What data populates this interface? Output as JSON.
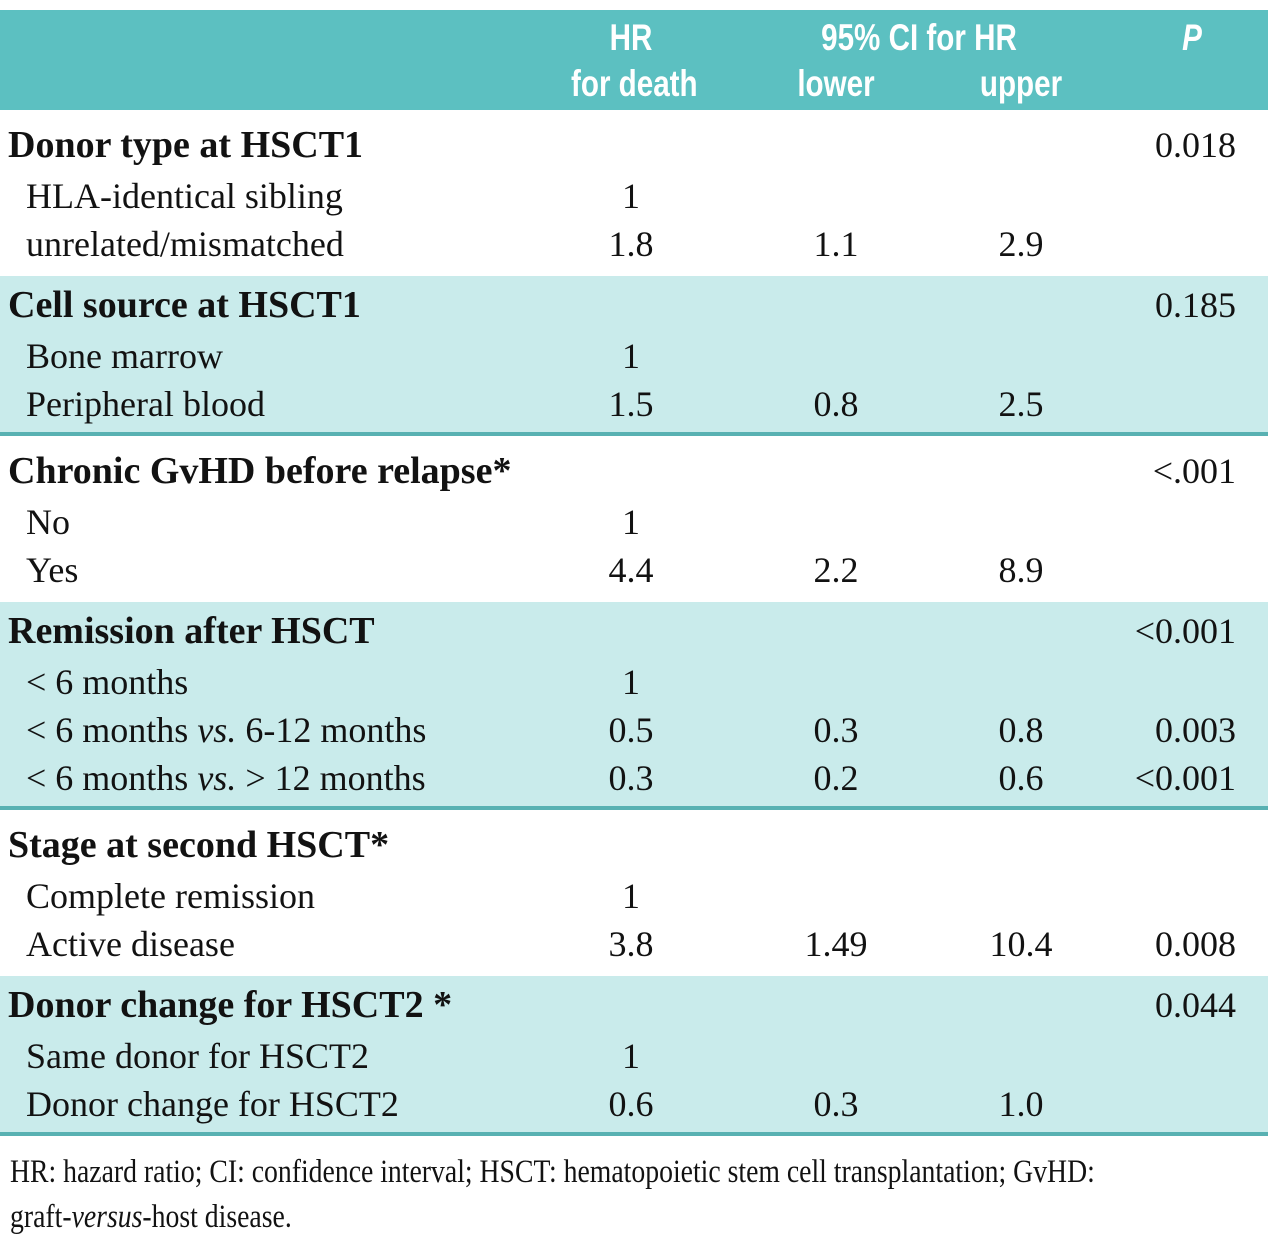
{
  "table": {
    "header": {
      "hr_line1": "HR",
      "hr_line2": "for death",
      "ci": "95% CI for HR",
      "lower": "lower",
      "upper": "upper",
      "p": "P"
    },
    "sections": [
      {
        "heading": "Donor type at HSCT1",
        "p": "0.018",
        "rows": [
          {
            "label": "HLA-identical sibling",
            "hr": "1"
          },
          {
            "label": "unrelated/mismatched",
            "hr": "1.8",
            "lower": "1.1",
            "upper": "2.9"
          }
        ]
      },
      {
        "heading": "Cell source at HSCT1",
        "p": "0.185",
        "rows": [
          {
            "label": "Bone marrow",
            "hr": "1"
          },
          {
            "label": "Peripheral blood",
            "hr": "1.5",
            "lower": "0.8",
            "upper": "2.5"
          }
        ]
      },
      {
        "heading": "Chronic GvHD before relapse*",
        "p": "<.001",
        "rows": [
          {
            "label": "No",
            "hr": "1"
          },
          {
            "label": "Yes",
            "hr": "4.4",
            "lower": "2.2",
            "upper": "8.9"
          }
        ]
      },
      {
        "heading": "Remission after HSCT",
        "p": "<0.001",
        "rows": [
          {
            "label": "< 6 months",
            "hr": "1"
          },
          {
            "label": "< 6 months ",
            "label_italic": "vs.",
            "label_post": " 6-12 months",
            "hr": "0.5",
            "lower": "0.3",
            "upper": "0.8",
            "p": "0.003"
          },
          {
            "label": "< 6 months ",
            "label_italic": "vs.",
            "label_post": " > 12 months",
            "hr": "0.3",
            "lower": "0.2",
            "upper": "0.6",
            "p": "<0.001"
          }
        ]
      },
      {
        "heading": "Stage at second HSCT*",
        "p": "",
        "rows": [
          {
            "label": "Complete remission",
            "hr": "1"
          },
          {
            "label": "Active disease",
            "hr": "3.8",
            "lower": "1.49",
            "upper": "10.4",
            "p": "0.008"
          }
        ]
      },
      {
        "heading": "Donor change for HSCT2 *",
        "p": "0.044",
        "rows": [
          {
            "label": "Same donor for HSCT2",
            "hr": "1"
          },
          {
            "label": "Donor change for HSCT2",
            "hr": "0.6",
            "lower": "0.3",
            "upper": "1.0"
          }
        ]
      }
    ],
    "footnote": {
      "line1": "HR: hazard ratio; CI: confidence interval; HSCT: hematopoietic stem cell transplantation; GvHD:",
      "line2_pre": "graft-",
      "line2_italic": "versus",
      "line2_post": "-host disease."
    },
    "colors": {
      "header_teal": "#5cc0c1",
      "band_teal": "#c9ebeb",
      "divider_teal": "#58b1b2"
    }
  }
}
